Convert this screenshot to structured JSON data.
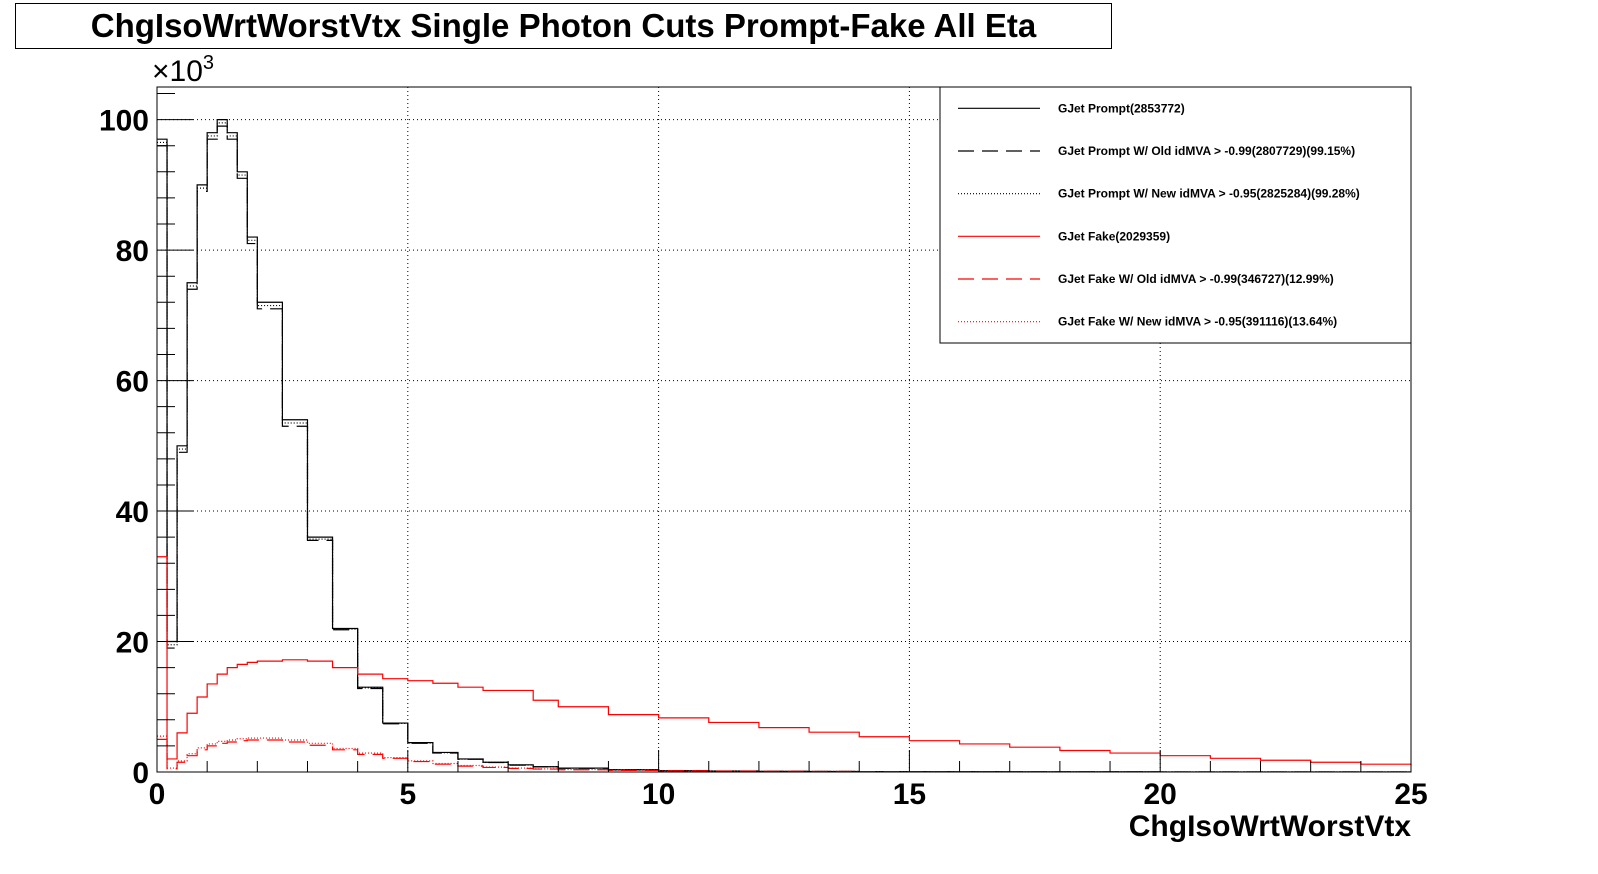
{
  "chart_data": {
    "type": "line",
    "title": "ChgIsoWrtWorstVtx Single Photon Cuts Prompt-Fake All Eta",
    "xlabel": "ChgIsoWrtWorstVtx",
    "ylabel": "",
    "y_multiplier_label": "×10",
    "y_multiplier_exponent": "3",
    "xlim": [
      0,
      25
    ],
    "ylim": [
      0,
      105
    ],
    "x_ticks": [
      "0",
      "5",
      "10",
      "15",
      "20",
      "25"
    ],
    "y_ticks": [
      "0",
      "20",
      "40",
      "60",
      "80",
      "100"
    ],
    "grid": true,
    "legend_placement": "top-right",
    "x": [
      0,
      0.2,
      0.4,
      0.6,
      0.8,
      1.0,
      1.2,
      1.4,
      1.6,
      1.8,
      2.0,
      2.5,
      3.0,
      3.5,
      4.0,
      4.5,
      5.0,
      5.5,
      6.0,
      6.5,
      7.0,
      7.5,
      8.0,
      9.0,
      10.0,
      11.0,
      12.0,
      13.0,
      14.0,
      15.0,
      16.0,
      17.0,
      18.0,
      19.0,
      20.0,
      21.0,
      22.0,
      23.0,
      24.0,
      25.0
    ],
    "series": [
      {
        "name": "GJet Prompt(2853772)",
        "color": "#000000",
        "dash": "solid",
        "values": [
          97,
          20,
          50,
          75,
          90,
          98,
          100,
          98,
          92,
          82,
          72,
          54,
          36,
          22,
          13,
          7.5,
          4.5,
          3,
          2,
          1.5,
          1.1,
          0.8,
          0.6,
          0.35,
          0.2,
          0.15,
          0.1,
          0.08,
          0.06,
          0.05,
          0.04,
          0.03,
          0.02,
          0.02,
          0.01,
          0.01,
          0.01,
          0.01,
          0.01,
          0.01
        ]
      },
      {
        "name": "GJet Prompt W/ Old idMVA > -0.99(2807729)(99.15%)",
        "color": "#000000",
        "dash": "dashed",
        "values": [
          96,
          19,
          49,
          74,
          89,
          97,
          99,
          97,
          91,
          81,
          71,
          53,
          35.5,
          21.8,
          12.8,
          7.4,
          4.4,
          2.9,
          1.95,
          1.45,
          1.05,
          0.78,
          0.58,
          0.34,
          0.19,
          0.14,
          0.1,
          0.08,
          0.06,
          0.05,
          0.04,
          0.03,
          0.02,
          0.02,
          0.01,
          0.01,
          0.01,
          0.01,
          0.01,
          0.01
        ]
      },
      {
        "name": "GJet Prompt W/ New idMVA > -0.95(2825284)(99.28%)",
        "color": "#000000",
        "dash": "dotted",
        "values": [
          96.5,
          19.5,
          49.5,
          74.5,
          89.5,
          97.5,
          99.5,
          97.5,
          91.5,
          81.5,
          71.5,
          53.5,
          35.7,
          21.9,
          12.9,
          7.45,
          4.45,
          2.95,
          1.97,
          1.47,
          1.07,
          0.79,
          0.59,
          0.34,
          0.19,
          0.14,
          0.1,
          0.08,
          0.06,
          0.05,
          0.04,
          0.03,
          0.02,
          0.02,
          0.01,
          0.01,
          0.01,
          0.01,
          0.01,
          0.01
        ]
      },
      {
        "name": "GJet Fake(2029359)",
        "color": "#ff0000",
        "dash": "solid",
        "values": [
          33,
          2,
          6,
          9,
          11.5,
          13.5,
          15,
          16,
          16.5,
          16.8,
          17,
          17.2,
          17,
          16,
          15,
          14.3,
          14,
          13.6,
          13,
          12.5,
          12.5,
          11,
          10,
          8.8,
          8.3,
          7.6,
          6.8,
          6.1,
          5.4,
          4.8,
          4.3,
          3.8,
          3.3,
          2.9,
          2.5,
          2.1,
          1.8,
          1.5,
          1.2,
          1.0
        ]
      },
      {
        "name": "GJet Fake W/ Old idMVA > -0.99(346727)(12.99%)",
        "color": "#ff0000",
        "dash": "dashed",
        "values": [
          5,
          0.5,
          1.5,
          2.5,
          3.4,
          4,
          4.4,
          4.6,
          4.8,
          4.9,
          4.9,
          4.6,
          4.1,
          3.4,
          2.7,
          2.1,
          1.6,
          1.2,
          0.9,
          0.7,
          0.55,
          0.45,
          0.35,
          0.25,
          0.18,
          0.13,
          0.1,
          0.08,
          0.06,
          0.05,
          0.04,
          0.03,
          0.02,
          0.02,
          0.01,
          0.01,
          0.01,
          0.01,
          0.01,
          0.01
        ]
      },
      {
        "name": "GJet Fake W/ New idMVA > -0.95(391116)(13.64%)",
        "color": "#ff0000",
        "dash": "dotted",
        "values": [
          5.5,
          0.6,
          1.7,
          2.8,
          3.7,
          4.3,
          4.7,
          4.9,
          5.1,
          5.2,
          5.2,
          4.9,
          4.4,
          3.6,
          2.9,
          2.2,
          1.7,
          1.3,
          1.0,
          0.75,
          0.6,
          0.48,
          0.38,
          0.27,
          0.19,
          0.14,
          0.1,
          0.08,
          0.06,
          0.05,
          0.04,
          0.03,
          0.02,
          0.02,
          0.01,
          0.01,
          0.01,
          0.01,
          0.01,
          0.01
        ]
      }
    ]
  }
}
